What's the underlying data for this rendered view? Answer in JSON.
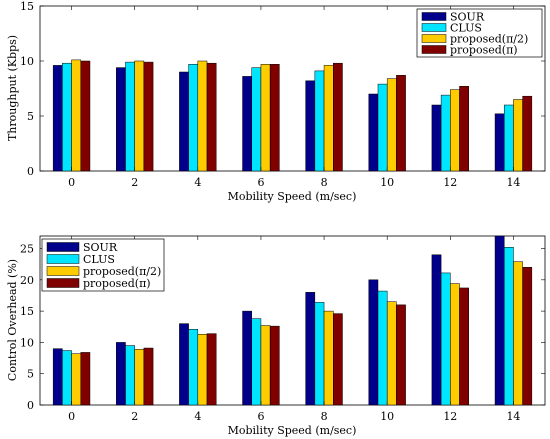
{
  "colors": {
    "SOUR": "#00008B",
    "CLUS": "#00E5FF",
    "proposed_half_pi": "#FFCC00",
    "proposed_pi": "#800000"
  },
  "chart_data": [
    {
      "type": "bar",
      "categories": [
        "0",
        "2",
        "4",
        "6",
        "8",
        "10",
        "12",
        "14"
      ],
      "xlabel": "Mobility Speed (m/sec)",
      "ylabel": "Throughput (Kbps)",
      "ylim": [
        0,
        15
      ],
      "yticks": [
        "0",
        "5",
        "10",
        "15"
      ],
      "legend_position": "top-right",
      "grid": false,
      "series": [
        {
          "name": "SOUR",
          "color": "#00008B",
          "values": [
            9.6,
            9.4,
            9.0,
            8.6,
            8.2,
            7.0,
            6.0,
            5.2
          ]
        },
        {
          "name": "CLUS",
          "color": "#00E5FF",
          "values": [
            9.8,
            9.9,
            9.7,
            9.4,
            9.1,
            7.9,
            6.9,
            6.0
          ]
        },
        {
          "name": "proposed(π/2)",
          "color": "#FFCC00",
          "values": [
            10.1,
            10.0,
            10.0,
            9.7,
            9.6,
            8.4,
            7.4,
            6.5
          ]
        },
        {
          "name": "proposed(π)",
          "color": "#800000",
          "values": [
            10.0,
            9.9,
            9.8,
            9.7,
            9.8,
            8.7,
            7.7,
            6.8
          ]
        }
      ]
    },
    {
      "type": "bar",
      "categories": [
        "0",
        "2",
        "4",
        "6",
        "8",
        "10",
        "12",
        "14"
      ],
      "xlabel": "Mobility Speed (m/sec)",
      "ylabel": "Control Overhead (%)",
      "ylim": [
        0,
        27
      ],
      "yticks": [
        "0",
        "5",
        "10",
        "15",
        "20",
        "25"
      ],
      "legend_position": "top-left",
      "grid": false,
      "series": [
        {
          "name": "SOUR",
          "color": "#00008B",
          "values": [
            9.0,
            10.0,
            13.0,
            15.0,
            18.0,
            20.0,
            24.0,
            27.0
          ]
        },
        {
          "name": "CLUS",
          "color": "#00E5FF",
          "values": [
            8.7,
            9.5,
            12.1,
            13.8,
            16.4,
            18.2,
            21.1,
            25.2
          ]
        },
        {
          "name": "proposed(π/2)",
          "color": "#FFCC00",
          "values": [
            8.2,
            8.9,
            11.3,
            12.7,
            15.0,
            16.5,
            19.4,
            22.9
          ]
        },
        {
          "name": "proposed(π)",
          "color": "#800000",
          "values": [
            8.4,
            9.1,
            11.4,
            12.6,
            14.6,
            16.0,
            18.7,
            22.0
          ]
        }
      ]
    }
  ]
}
